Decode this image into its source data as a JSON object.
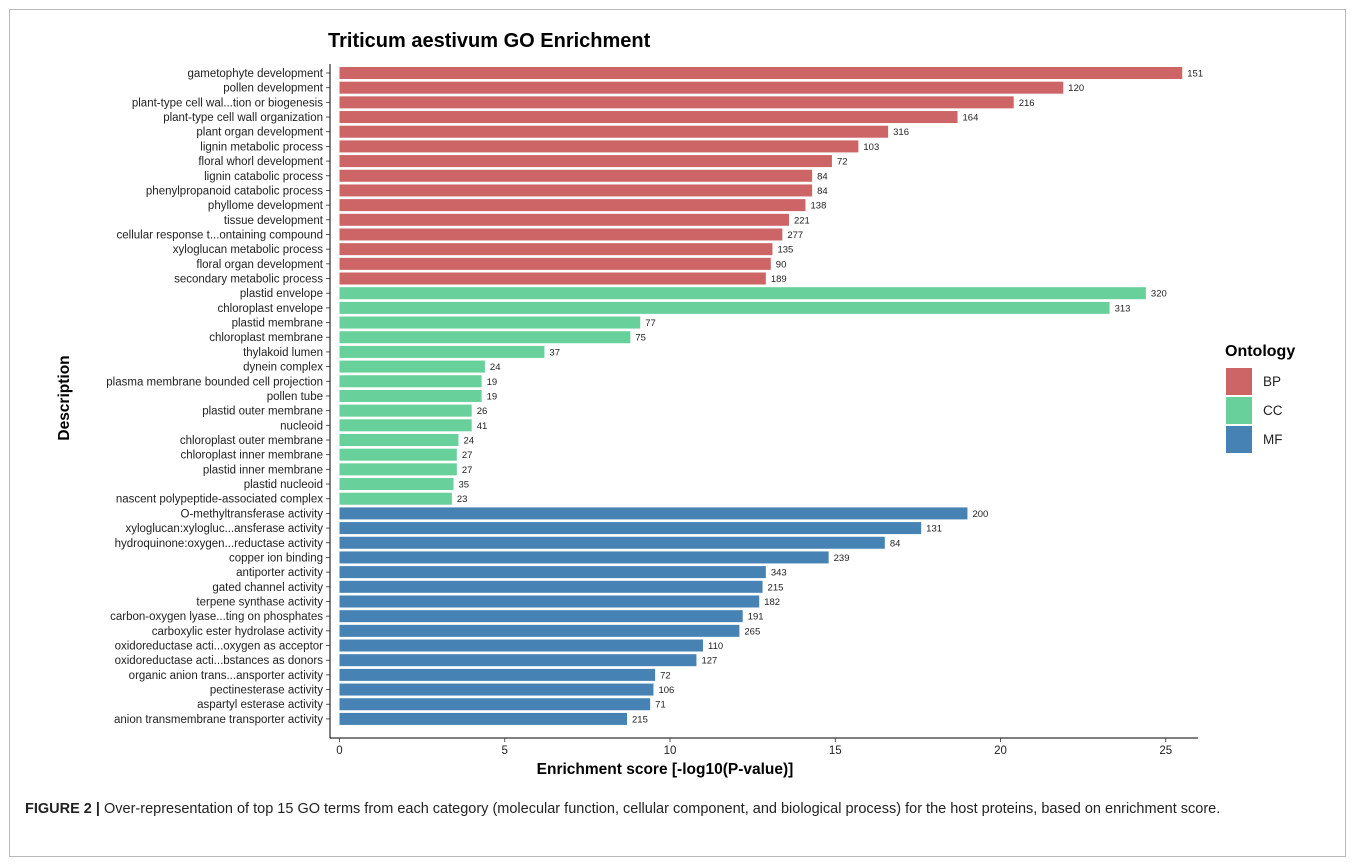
{
  "chart_data": {
    "type": "bar",
    "orientation": "horizontal",
    "title": "Triticum aestivum GO Enrichment",
    "xlabel": "Enrichment score [-log10(P-value)]",
    "ylabel": "Description",
    "xlim": [
      0,
      26
    ],
    "xticks": [
      0,
      5,
      10,
      15,
      20,
      25
    ],
    "grid": false,
    "legend": {
      "title": "Ontology",
      "position": "right",
      "entries": [
        {
          "name": "BP",
          "color": "#cd6465"
        },
        {
          "name": "CC",
          "color": "#68d09b"
        },
        {
          "name": "MF",
          "color": "#4682b4"
        }
      ]
    },
    "bars": [
      {
        "label": "gametophyte development",
        "value": 25.5,
        "count": "151",
        "ontology": "BP"
      },
      {
        "label": "pollen development",
        "value": 21.9,
        "count": "120",
        "ontology": "BP"
      },
      {
        "label": "plant-type cell wal...tion or biogenesis",
        "value": 20.4,
        "count": "216",
        "ontology": "BP"
      },
      {
        "label": "plant-type cell wall organization",
        "value": 18.7,
        "count": "164",
        "ontology": "BP"
      },
      {
        "label": "plant organ development",
        "value": 16.6,
        "count": "316",
        "ontology": "BP"
      },
      {
        "label": "lignin metabolic process",
        "value": 15.7,
        "count": "103",
        "ontology": "BP"
      },
      {
        "label": "floral whorl development",
        "value": 14.9,
        "count": "72",
        "ontology": "BP"
      },
      {
        "label": "lignin catabolic process",
        "value": 14.3,
        "count": "84",
        "ontology": "BP"
      },
      {
        "label": "phenylpropanoid catabolic process",
        "value": 14.3,
        "count": "84",
        "ontology": "BP"
      },
      {
        "label": "phyllome development",
        "value": 14.1,
        "count": "138",
        "ontology": "BP"
      },
      {
        "label": "tissue development",
        "value": 13.6,
        "count": "221",
        "ontology": "BP"
      },
      {
        "label": "cellular response t...ontaining compound",
        "value": 13.4,
        "count": "277",
        "ontology": "BP"
      },
      {
        "label": "xyloglucan metabolic process",
        "value": 13.1,
        "count": "135",
        "ontology": "BP"
      },
      {
        "label": "floral organ development",
        "value": 13.05,
        "count": "90",
        "ontology": "BP"
      },
      {
        "label": "secondary metabolic process",
        "value": 12.9,
        "count": "189",
        "ontology": "BP"
      },
      {
        "label": "plastid envelope",
        "value": 24.4,
        "count": "320",
        "ontology": "CC"
      },
      {
        "label": "chloroplast envelope",
        "value": 23.3,
        "count": "313",
        "ontology": "CC"
      },
      {
        "label": "plastid membrane",
        "value": 9.1,
        "count": "77",
        "ontology": "CC"
      },
      {
        "label": "chloroplast membrane",
        "value": 8.8,
        "count": "75",
        "ontology": "CC"
      },
      {
        "label": "thylakoid lumen",
        "value": 6.2,
        "count": "37",
        "ontology": "CC"
      },
      {
        "label": "dynein complex",
        "value": 4.4,
        "count": "24",
        "ontology": "CC"
      },
      {
        "label": "plasma membrane bounded cell projection",
        "value": 4.3,
        "count": "19",
        "ontology": "CC"
      },
      {
        "label": "pollen tube",
        "value": 4.3,
        "count": "19",
        "ontology": "CC"
      },
      {
        "label": "plastid outer membrane",
        "value": 4.0,
        "count": "26",
        "ontology": "CC"
      },
      {
        "label": "nucleoid",
        "value": 4.0,
        "count": "41",
        "ontology": "CC"
      },
      {
        "label": "chloroplast outer membrane",
        "value": 3.6,
        "count": "24",
        "ontology": "CC"
      },
      {
        "label": "chloroplast inner membrane",
        "value": 3.55,
        "count": "27",
        "ontology": "CC"
      },
      {
        "label": "plastid inner membrane",
        "value": 3.55,
        "count": "27",
        "ontology": "CC"
      },
      {
        "label": "plastid nucleoid",
        "value": 3.45,
        "count": "35",
        "ontology": "CC"
      },
      {
        "label": "nascent polypeptide-associated complex",
        "value": 3.4,
        "count": "23",
        "ontology": "CC"
      },
      {
        "label": "O-methyltransferase activity",
        "value": 19.0,
        "count": "200",
        "ontology": "MF"
      },
      {
        "label": "xyloglucan:xylogluc...ansferase activity",
        "value": 17.6,
        "count": "131",
        "ontology": "MF"
      },
      {
        "label": "hydroquinone:oxygen...reductase activity",
        "value": 16.5,
        "count": "84",
        "ontology": "MF"
      },
      {
        "label": "copper ion binding",
        "value": 14.8,
        "count": "239",
        "ontology": "MF"
      },
      {
        "label": "antiporter activity",
        "value": 12.9,
        "count": "343",
        "ontology": "MF"
      },
      {
        "label": "gated channel activity",
        "value": 12.8,
        "count": "215",
        "ontology": "MF"
      },
      {
        "label": "terpene synthase activity",
        "value": 12.7,
        "count": "182",
        "ontology": "MF"
      },
      {
        "label": "carbon-oxygen lyase...ting on phosphates",
        "value": 12.2,
        "count": "191",
        "ontology": "MF"
      },
      {
        "label": "carboxylic ester hydrolase activity",
        "value": 12.1,
        "count": "265",
        "ontology": "MF"
      },
      {
        "label": "oxidoreductase acti...oxygen as acceptor",
        "value": 11.0,
        "count": "110",
        "ontology": "MF"
      },
      {
        "label": "oxidoreductase acti...bstances as donors",
        "value": 10.8,
        "count": "127",
        "ontology": "MF"
      },
      {
        "label": "organic anion trans...ansporter activity",
        "value": 9.55,
        "count": "72",
        "ontology": "MF"
      },
      {
        "label": "pectinesterase activity",
        "value": 9.5,
        "count": "106",
        "ontology": "MF"
      },
      {
        "label": "aspartyl esterase activity",
        "value": 9.4,
        "count": "71",
        "ontology": "MF"
      },
      {
        "label": "anion transmembrane transporter activity",
        "value": 8.7,
        "count": "215",
        "ontology": "MF"
      }
    ]
  },
  "caption": {
    "label": "FIGURE 2 |",
    "text": " Over-representation of top 15 GO terms from each category (molecular function, cellular component, and biological process) for the host proteins, based on enrichment score."
  }
}
